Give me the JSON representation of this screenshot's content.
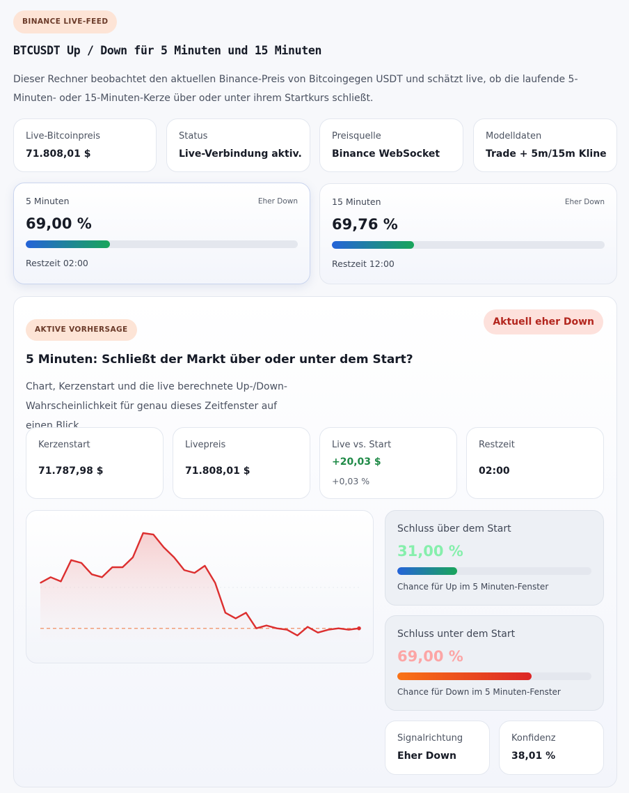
{
  "header": {
    "badge": "BINANCE LIVE-FEED",
    "title": "BTCUSDT Up / Down für 5 Minuten und 15 Minuten",
    "intro": "Dieser Rechner beobachtet den aktuellen Binance-Preis von Bitcoingegen USDT und schätzt live, ob die laufende 5-Minuten- oder 15-Minuten-Kerze über oder unter ihrem Startkurs schließt."
  },
  "info_cards": [
    {
      "label": "Live-Bitcoinpreis",
      "value": "71.808,01 $"
    },
    {
      "label": "Status",
      "value": "Live-Verbindung aktiv."
    },
    {
      "label": "Preisquelle",
      "value": "Binance WebSocket"
    },
    {
      "label": "Modelldaten",
      "value": "Trade + 5m/15m Kline"
    }
  ],
  "timeframes": [
    {
      "label": "5 Minuten",
      "tag": "Eher Down",
      "pct": "69,00 %",
      "progress": 0.31,
      "rest": "Restzeit 02:00",
      "selected": true
    },
    {
      "label": "15 Minuten",
      "tag": "Eher Down",
      "pct": "69,76 %",
      "progress": 0.3,
      "rest": "Restzeit 12:00",
      "selected": false
    }
  ],
  "prediction": {
    "badge": "AKTIVE VORHERSAGE",
    "status": "Aktuell eher Down",
    "title": "5 Minuten: Schließt der Markt über oder unter dem Start?",
    "description": "Chart, Kerzenstart und die live berechnete Up-/Down-Wahrscheinlichkeit für genau dieses Zeitfenster auf einen Blick.",
    "stats": {
      "kerzenstart": {
        "label": "Kerzenstart",
        "value": "71.787,98 $"
      },
      "livepreis": {
        "label": "Livepreis",
        "value": "71.808,01 $"
      },
      "diff": {
        "label": "Live vs. Start",
        "value": "+20,03 $",
        "sub": "+0,03 %"
      },
      "restzeit": {
        "label": "Restzeit",
        "value": "02:00"
      }
    },
    "up": {
      "label": "Schluss über dem Start",
      "pct": "31,00 %",
      "progress": 0.31,
      "caption": "Chance für Up im 5 Minuten-Fenster",
      "color": "#86efac"
    },
    "down": {
      "label": "Schluss unter dem Start",
      "pct": "69,00 %",
      "progress": 0.69,
      "caption": "Chance für Down im 5 Minuten-Fenster",
      "color": "#fca5a5"
    },
    "signal": {
      "label": "Signalrichtung",
      "value": "Eher Down"
    },
    "confidence": {
      "label": "Konfidenz",
      "value": "38,01 %"
    }
  },
  "chart_data": {
    "type": "line",
    "title": "",
    "xlabel": "",
    "ylabel": "",
    "start_price": 71787.98,
    "series": [
      {
        "values": [
          71820,
          71824,
          71821,
          71836,
          71834,
          71826,
          71824,
          71831,
          71831,
          71838,
          71855,
          71854,
          71845,
          71838,
          71829,
          71827,
          71832,
          71820,
          71799,
          71795,
          71799,
          71788,
          71790,
          71788,
          71787,
          71783,
          71789,
          71785,
          71787,
          71788,
          71787,
          71788
        ]
      }
    ],
    "colors": {
      "line": "#dc2f2f",
      "baseline": "#f08d63"
    },
    "grid": false,
    "legend": "none"
  }
}
